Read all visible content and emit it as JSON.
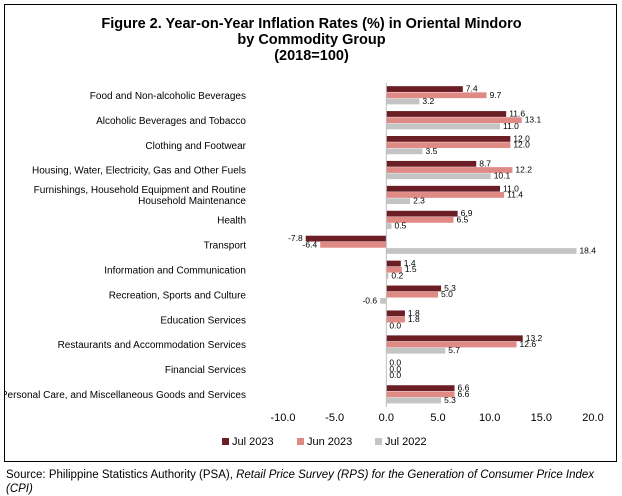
{
  "title": {
    "line1": "Figure 2. Year-on-Year Inflation Rates (%) in Oriental Mindoro",
    "line2": "by Commodity Group",
    "line3": "(2018=100)"
  },
  "source": {
    "plain": "Source: Philippine Statistics Authority (PSA), ",
    "italic": "Retail Price Survey (RPS) for the Generation of Consumer Price Index (CPI)"
  },
  "colors": {
    "jul2023": "#6b1e24",
    "jun2023": "#e08a86",
    "jul2022": "#c4c4c4",
    "axis": "#bfbfbf"
  },
  "chart_data": {
    "type": "bar",
    "orientation": "horizontal",
    "categories": [
      "Food and Non-alcoholic Beverages",
      "Alcoholic Beverages and Tobacco",
      "Clothing and Footwear",
      "Housing, Water, Electricity, Gas and Other Fuels",
      "Furnishings, Household Equipment and Routine Household Maintenance",
      "Health",
      "Transport",
      "Information and Communication",
      "Recreation, Sports and Culture",
      "Education Services",
      "Restaurants and Accommodation Services",
      "Financial Services",
      "Personal Care, and Miscellaneous Goods and Services"
    ],
    "category_lines": [
      [
        "Food and Non-alcoholic Beverages"
      ],
      [
        "Alcoholic Beverages and Tobacco"
      ],
      [
        "Clothing and Footwear"
      ],
      [
        "Housing, Water, Electricity, Gas and Other Fuels"
      ],
      [
        "Furnishings, Household Equipment and Routine",
        "Household Maintenance"
      ],
      [
        "Health"
      ],
      [
        "Transport"
      ],
      [
        "Information and Communication"
      ],
      [
        "Recreation, Sports and Culture"
      ],
      [
        "Education Services"
      ],
      [
        "Restaurants and Accommodation Services"
      ],
      [
        "Financial Services"
      ],
      [
        "Personal Care, and Miscellaneous Goods and Services"
      ]
    ],
    "series": [
      {
        "name": "Jul 2023",
        "color_key": "jul2023",
        "values": [
          7.4,
          11.6,
          12.0,
          8.7,
          11.0,
          6.9,
          -7.8,
          1.4,
          5.3,
          1.8,
          13.2,
          0.0,
          6.6
        ],
        "labels": [
          "7.4",
          "11.6",
          "12.0",
          "8.7",
          "11.0",
          "6.9",
          "-7.8",
          "1.4",
          "5.3",
          "1.8",
          "13.2",
          "0.0",
          "6.6"
        ]
      },
      {
        "name": "Jun 2023",
        "color_key": "jun2023",
        "values": [
          9.7,
          13.1,
          12.0,
          12.2,
          11.4,
          6.5,
          -6.4,
          1.5,
          5.0,
          1.8,
          12.6,
          0.0,
          6.6
        ],
        "labels": [
          "9.7",
          "13.1",
          "12.0",
          "12.2",
          "11.4",
          "6.5",
          "-6.4",
          "1.5",
          "5.0",
          "1.8",
          "12.6",
          "0.0",
          "6.6"
        ]
      },
      {
        "name": "Jul 2022",
        "color_key": "jul2022",
        "values": [
          3.2,
          11.0,
          3.5,
          10.1,
          2.3,
          0.5,
          18.4,
          0.2,
          -0.6,
          0.0,
          5.7,
          0.0,
          5.3
        ],
        "labels": [
          "3.2",
          "11.0",
          "3.5",
          "10.1",
          "2.3",
          "0.5",
          "18.4",
          "0.2",
          "-0.6",
          "0.0",
          "5.7",
          "0.0",
          "5.3"
        ]
      }
    ],
    "xlim": [
      -10.0,
      20.0
    ],
    "xticks": [
      "-10.0",
      "-5.0",
      "0.0",
      "5.0",
      "10.0",
      "15.0",
      "20.0"
    ],
    "xtick_values": [
      -10,
      -5,
      0,
      5,
      10,
      15,
      20
    ],
    "grid": false,
    "legend_position": "bottom"
  }
}
